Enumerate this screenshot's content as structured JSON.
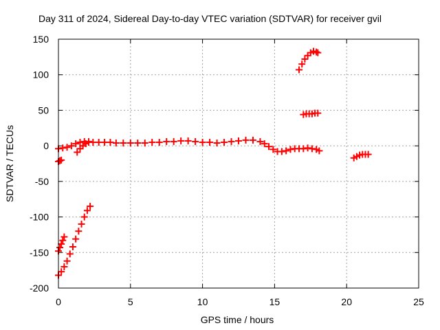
{
  "chart_data": {
    "type": "scatter",
    "title": "Day 311 of 2024, Sidereal Day-to-day VTEC variation (SDTVAR) for receiver gvil",
    "xlabel": "GPS time / hours",
    "ylabel": "SDTVAR / TECUs",
    "xlim": [
      0,
      25
    ],
    "ylim": [
      -200,
      150
    ],
    "xticks": [
      0,
      5,
      10,
      15,
      20,
      25
    ],
    "yticks": [
      -200,
      -150,
      -100,
      -50,
      0,
      50,
      100,
      150
    ],
    "xtick_labels": [
      "0",
      "5",
      "10",
      "15",
      "20",
      "25"
    ],
    "ytick_labels": [
      "-200",
      "-150",
      "-100",
      "-50",
      "0",
      "50",
      "100",
      "150"
    ],
    "grid": true,
    "marker": "plus",
    "color": "#ff0000",
    "series": [
      {
        "x": [
          0.0,
          0.1,
          0.2
        ],
        "y": [
          -22,
          -21,
          -20
        ]
      },
      {
        "x": [
          0.0,
          0.1,
          0.2,
          0.3,
          0.4
        ],
        "y": [
          -148,
          -143,
          -138,
          -133,
          -128
        ]
      },
      {
        "x": [
          0.0,
          0.2,
          0.4,
          0.6,
          0.8,
          1.0,
          1.2,
          1.4,
          1.6,
          1.8,
          2.0,
          2.2
        ],
        "y": [
          -182,
          -177,
          -170,
          -162,
          -152,
          -142,
          -131,
          -120,
          -110,
          -100,
          -91,
          -85
        ]
      },
      {
        "x": [
          0.0,
          0.3,
          0.6,
          0.9,
          1.2,
          1.5,
          1.8,
          2.1,
          2.4,
          2.8,
          3.2,
          3.6,
          4.0,
          4.5,
          5.0,
          5.5,
          6.0,
          6.5,
          7.0,
          7.5,
          8.0,
          8.5,
          9.0,
          9.5,
          10.0,
          10.5,
          11.0,
          11.5,
          12.0,
          12.5,
          13.0,
          13.5,
          14.0,
          14.3,
          14.6,
          14.9,
          15.2,
          15.5,
          15.8,
          16.1,
          16.4,
          16.7,
          17.0,
          17.3,
          17.6,
          17.9,
          18.1
        ],
        "y": [
          -4,
          -3,
          -2,
          0,
          3,
          5,
          6,
          6,
          5,
          5,
          5,
          5,
          4,
          4,
          4,
          4,
          4,
          5,
          5,
          6,
          6,
          7,
          7,
          6,
          5,
          5,
          4,
          5,
          6,
          7,
          8,
          8,
          6,
          3,
          -1,
          -5,
          -8,
          -8,
          -7,
          -5,
          -4,
          -4,
          -4,
          -3,
          -4,
          -5,
          -7
        ]
      },
      {
        "x": [
          1.3,
          1.5,
          1.7,
          1.9,
          2.1
        ],
        "y": [
          -9,
          -4,
          0,
          3,
          5
        ]
      },
      {
        "x": [
          16.7,
          16.9,
          17.1,
          17.3,
          17.5,
          17.7,
          17.9,
          18.0
        ],
        "y": [
          107,
          115,
          122,
          127,
          131,
          133,
          132,
          131
        ]
      },
      {
        "x": [
          17.0,
          17.2,
          17.4,
          17.6,
          17.8,
          18.0
        ],
        "y": [
          44,
          45,
          45,
          45,
          46,
          46
        ]
      },
      {
        "x": [
          20.5,
          20.7,
          20.9,
          21.1,
          21.3,
          21.5
        ],
        "y": [
          -17,
          -15,
          -13,
          -12,
          -12,
          -12
        ]
      }
    ]
  }
}
